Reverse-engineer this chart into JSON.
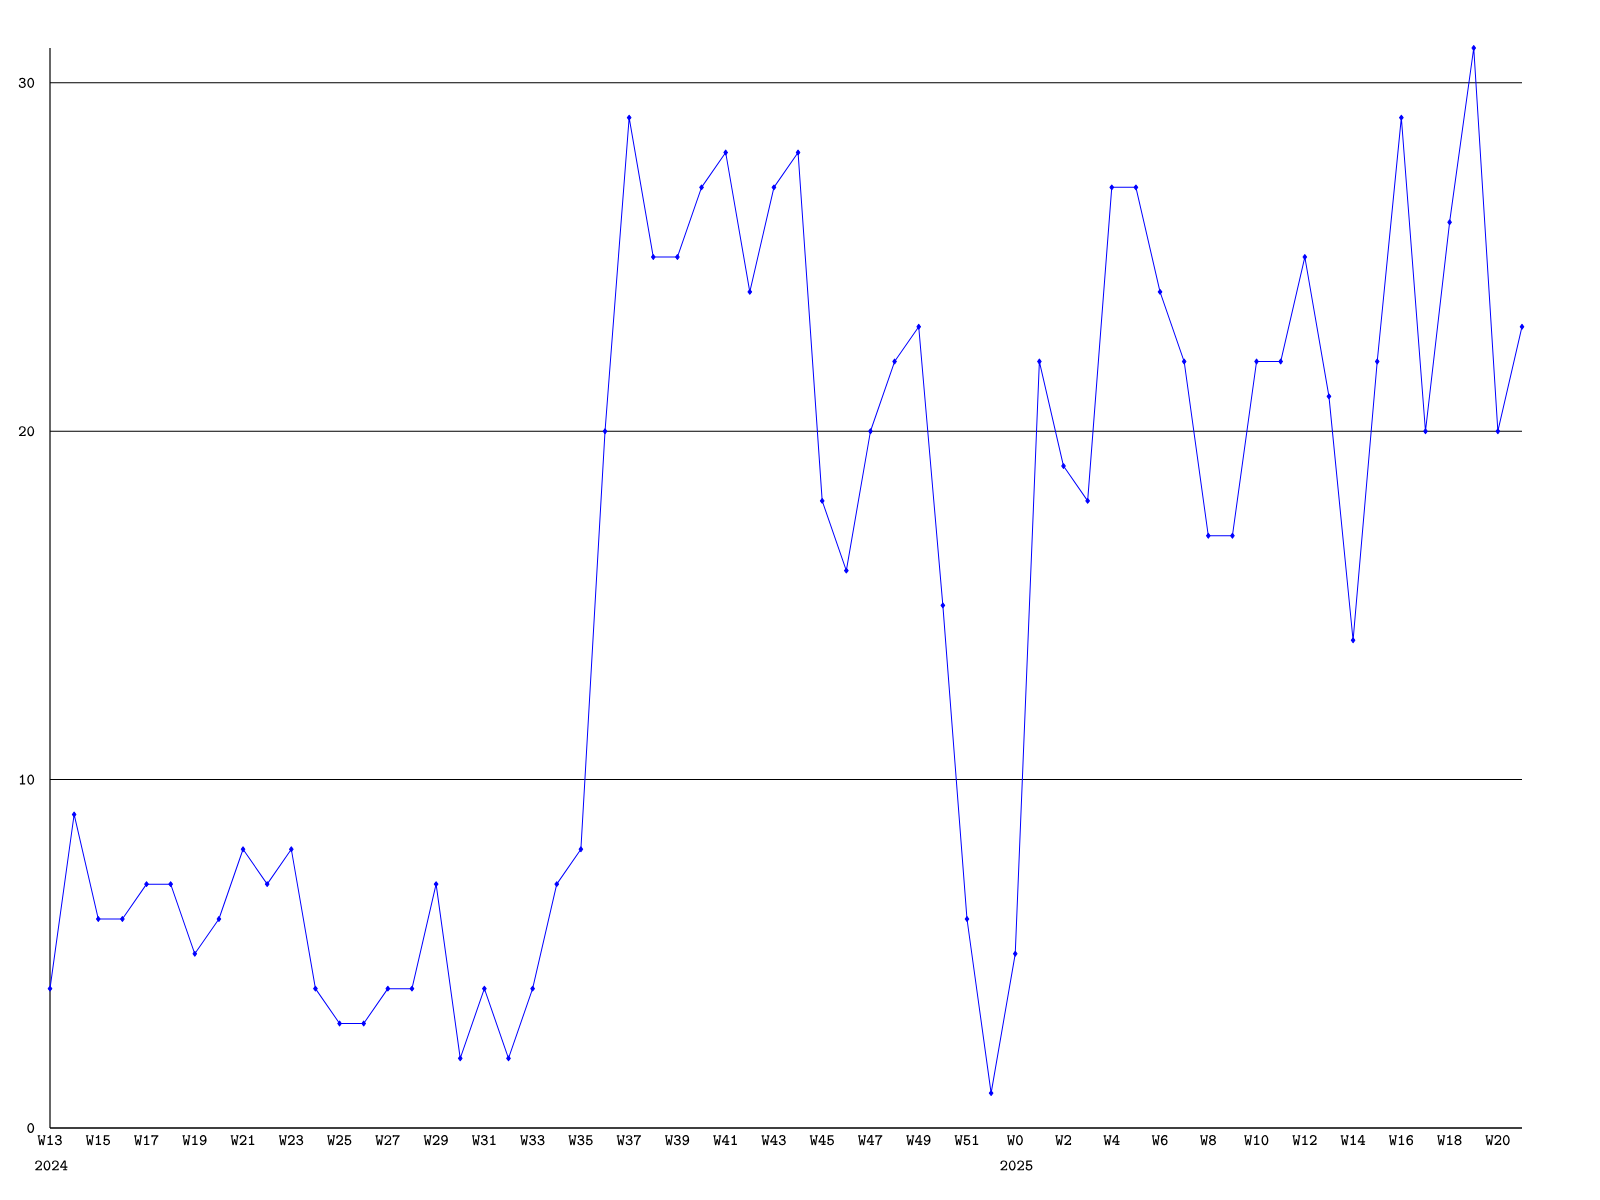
{
  "chart_data": {
    "type": "line",
    "categories": [
      "W13",
      null,
      "W15",
      null,
      "W17",
      null,
      "W19",
      null,
      "W21",
      null,
      "W23",
      null,
      "W25",
      null,
      "W27",
      null,
      "W29",
      null,
      "W31",
      null,
      "W33",
      null,
      "W35",
      null,
      "W37",
      null,
      "W39",
      null,
      "W41",
      null,
      "W43",
      null,
      "W45",
      null,
      "W47",
      null,
      "W49",
      null,
      "W51",
      null,
      "W0",
      null,
      "W2",
      null,
      "W4",
      null,
      "W6",
      null,
      "W8",
      null,
      "W10",
      null,
      "W12",
      null,
      "W14",
      null,
      "W16",
      null,
      "W18",
      null,
      "W20",
      null
    ],
    "values": [
      4,
      9,
      6,
      6,
      7,
      7,
      5,
      6,
      8,
      7,
      8,
      4,
      3,
      3,
      4,
      4,
      7,
      2,
      4,
      2,
      4,
      7,
      8,
      20,
      29,
      25,
      25,
      27,
      28,
      24,
      27,
      28,
      18,
      16,
      20,
      22,
      23,
      15,
      6,
      1,
      5,
      22,
      19,
      18,
      27,
      27,
      24,
      22,
      17,
      17,
      22,
      22,
      25,
      21,
      14,
      22,
      29,
      20,
      26,
      31,
      20,
      23
    ],
    "color": "#0000ff",
    "ylim": [
      0,
      31
    ],
    "yticks": [
      0,
      10,
      20,
      30
    ],
    "grid": "y",
    "marker": "diamond",
    "line_style": "solid",
    "annotations": [
      "2024",
      "2025"
    ]
  }
}
